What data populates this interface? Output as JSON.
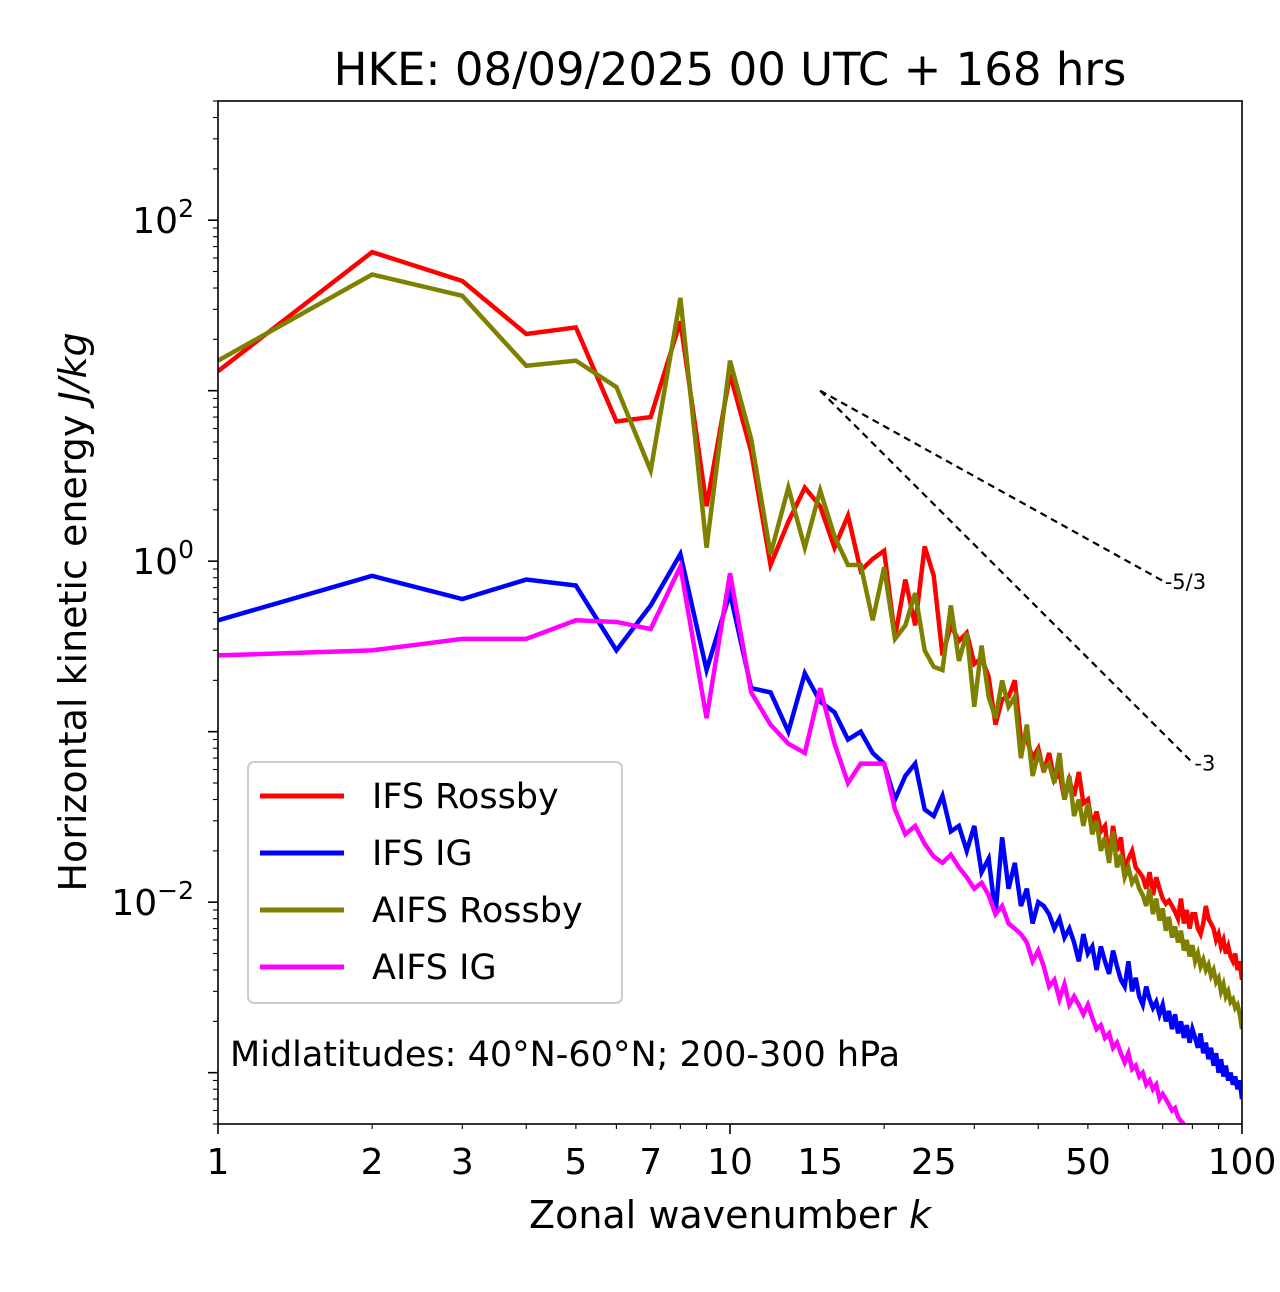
{
  "chart_data": {
    "type": "line",
    "title": "HKE: 08/09/2025 00 UTC + 168 hrs",
    "xlabel_main": "Zonal wavenumber ",
    "xlabel_var": "k",
    "ylabel_main": "Horizontal kinetic energy ",
    "ylabel_unit": "J/kg",
    "xscale": "log",
    "yscale": "log",
    "xlim": [
      1,
      100
    ],
    "ylim": [
      0.0005,
      500
    ],
    "x_ticks": [
      1,
      2,
      3,
      5,
      7,
      10,
      15,
      25,
      50,
      100
    ],
    "y_ticks": [
      {
        "value": 100,
        "base": "10",
        "exp": "2"
      },
      {
        "value": 1,
        "base": "10",
        "exp": "0"
      },
      {
        "value": 0.01,
        "base": "10",
        "exp": "−2"
      }
    ],
    "annotation": "Midlatitudes: 40°N-60°N; 200-300 hPa",
    "legend_position": "lower-left",
    "reference_lines": [
      {
        "label": "-5/3",
        "slope": -1.6667,
        "x_start": 15,
        "x_end": 70,
        "y_start": 10
      },
      {
        "label": "-3",
        "slope": -3,
        "x_start": 15,
        "x_end": 80,
        "y_start": 10
      }
    ],
    "series": [
      {
        "name": "IFS Rossby",
        "color": "#ff0000",
        "values": [
          13,
          65,
          44,
          21.5,
          23.5,
          6.6,
          7.0,
          25.5,
          2.1,
          12.5,
          4.4,
          0.95,
          1.7,
          2.7,
          2.1,
          1.2,
          1.85,
          0.88,
          1.03,
          1.15,
          0.36,
          0.78,
          0.42,
          1.22,
          0.82,
          0.28,
          0.42,
          0.34,
          0.38,
          0.25,
          0.27,
          0.21,
          0.11,
          0.155,
          0.16,
          0.2,
          0.09,
          0.09,
          0.07,
          0.08,
          0.058,
          0.075,
          0.052,
          0.058,
          0.04,
          0.052,
          0.042,
          0.058,
          0.038,
          0.04,
          0.028,
          0.034,
          0.026,
          0.028,
          0.018,
          0.028,
          0.02,
          0.024,
          0.015,
          0.018,
          0.02,
          0.016,
          0.015,
          0.014,
          0.012,
          0.015,
          0.011,
          0.014,
          0.012,
          0.0105,
          0.0098,
          0.0102,
          0.0095,
          0.0088,
          0.008,
          0.0105,
          0.0075,
          0.009,
          0.007,
          0.0085,
          0.0085,
          0.007,
          0.0065,
          0.0075,
          0.0095,
          0.008,
          0.0075,
          0.007,
          0.006,
          0.0065,
          0.0055,
          0.006,
          0.005,
          0.0055,
          0.0048,
          0.0045,
          0.005,
          0.004,
          0.0045,
          0.0035
        ]
      },
      {
        "name": "IFS IG",
        "color": "#0000ff",
        "values": [
          0.45,
          0.82,
          0.6,
          0.78,
          0.72,
          0.3,
          0.55,
          1.1,
          0.23,
          0.65,
          0.18,
          0.17,
          0.1,
          0.22,
          0.15,
          0.13,
          0.09,
          0.1,
          0.075,
          0.065,
          0.04,
          0.055,
          0.065,
          0.035,
          0.032,
          0.042,
          0.026,
          0.028,
          0.02,
          0.028,
          0.015,
          0.018,
          0.0085,
          0.024,
          0.012,
          0.017,
          0.0095,
          0.012,
          0.0075,
          0.01,
          0.0095,
          0.0085,
          0.007,
          0.008,
          0.0062,
          0.007,
          0.0058,
          0.0045,
          0.0065,
          0.005,
          0.0055,
          0.004,
          0.0055,
          0.0045,
          0.0038,
          0.0052,
          0.0042,
          0.0035,
          0.0032,
          0.0045,
          0.003,
          0.0036,
          0.0028,
          0.0025,
          0.0032,
          0.0027,
          0.0024,
          0.0026,
          0.0022,
          0.0025,
          0.002,
          0.0023,
          0.0018,
          0.0022,
          0.0017,
          0.002,
          0.0016,
          0.0019,
          0.0015,
          0.0018,
          0.0016,
          0.0014,
          0.0017,
          0.0013,
          0.0015,
          0.0012,
          0.0014,
          0.0011,
          0.0013,
          0.001,
          0.0012,
          0.00095,
          0.0011,
          0.0009,
          0.001,
          0.00085,
          0.00095,
          0.0008,
          0.0009,
          0.0007
        ]
      },
      {
        "name": "AIFS Rossby",
        "color": "#808000",
        "values": [
          15,
          48,
          36,
          14,
          15,
          10.5,
          3.4,
          35,
          1.2,
          15,
          5.2,
          1.1,
          2.7,
          1.2,
          2.6,
          1.4,
          0.95,
          0.95,
          0.45,
          0.92,
          0.35,
          0.42,
          0.65,
          0.3,
          0.24,
          0.23,
          0.55,
          0.26,
          0.38,
          0.14,
          0.32,
          0.16,
          0.12,
          0.2,
          0.14,
          0.16,
          0.07,
          0.11,
          0.055,
          0.075,
          0.06,
          0.065,
          0.05,
          0.075,
          0.04,
          0.055,
          0.032,
          0.04,
          0.028,
          0.038,
          0.025,
          0.03,
          0.02,
          0.024,
          0.017,
          0.026,
          0.016,
          0.019,
          0.014,
          0.016,
          0.013,
          0.014,
          0.012,
          0.011,
          0.0095,
          0.012,
          0.0085,
          0.0105,
          0.0078,
          0.0092,
          0.0068,
          0.0082,
          0.0062,
          0.0072,
          0.0058,
          0.0068,
          0.0052,
          0.006,
          0.0048,
          0.0056,
          0.0045,
          0.005,
          0.0042,
          0.0046,
          0.004,
          0.0043,
          0.0037,
          0.004,
          0.0034,
          0.0036,
          0.003,
          0.0033,
          0.0028,
          0.003,
          0.0026,
          0.0027,
          0.0024,
          0.0025,
          0.0022,
          0.0018
        ]
      },
      {
        "name": "AIFS IG",
        "color": "#ff00ff",
        "values": [
          0.28,
          0.3,
          0.35,
          0.35,
          0.45,
          0.44,
          0.4,
          0.93,
          0.12,
          0.85,
          0.17,
          0.11,
          0.085,
          0.075,
          0.18,
          0.085,
          0.05,
          0.065,
          0.065,
          0.065,
          0.035,
          0.025,
          0.028,
          0.022,
          0.0185,
          0.017,
          0.019,
          0.016,
          0.014,
          0.012,
          0.013,
          0.011,
          0.0085,
          0.0095,
          0.0075,
          0.007,
          0.0065,
          0.0058,
          0.0045,
          0.0052,
          0.0042,
          0.0032,
          0.0035,
          0.0027,
          0.0033,
          0.0025,
          0.0028,
          0.0025,
          0.0022,
          0.0025,
          0.0021,
          0.0018,
          0.0019,
          0.0016,
          0.0017,
          0.0014,
          0.0015,
          0.0013,
          0.00115,
          0.0013,
          0.00105,
          0.0011,
          0.00095,
          0.001,
          0.00085,
          0.0009,
          0.0008,
          0.00085,
          0.0007,
          0.00075,
          0.0007,
          0.00065,
          0.0006,
          0.00062,
          0.00055,
          0.00052,
          0.0005
        ]
      }
    ]
  }
}
